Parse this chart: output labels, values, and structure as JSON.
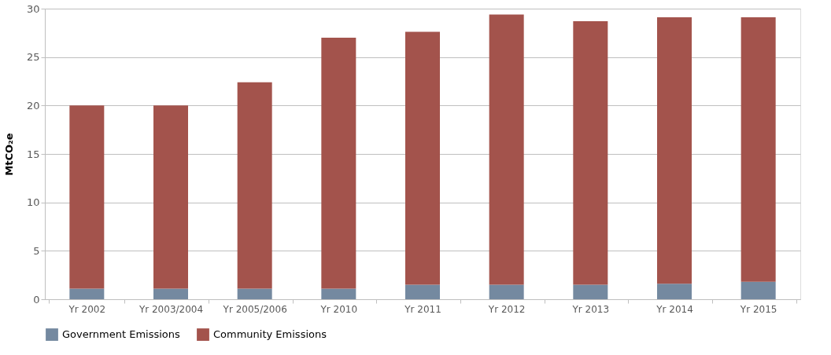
{
  "chart_data": {
    "type": "bar",
    "stacked": true,
    "ylabel": "MtCO₂e",
    "categories": [
      "Yr 2002",
      "Yr 2003/2004",
      "Yr 2005/2006",
      "Yr 2010",
      "Yr 2011",
      "Yr 2012",
      "Yr 2013",
      "Yr 2014",
      "Yr 2015"
    ],
    "series": [
      {
        "name": "Government Emissions",
        "color": "#7489a0",
        "values": [
          1.1,
          1.1,
          1.1,
          1.1,
          1.5,
          1.5,
          1.5,
          1.6,
          1.8
        ]
      },
      {
        "name": "Community Emissions",
        "color": "#a3534c",
        "values": [
          18.9,
          18.9,
          21.3,
          25.9,
          26.1,
          27.9,
          27.2,
          27.5,
          27.3
        ]
      }
    ],
    "ylim": [
      0,
      30
    ],
    "yticks": [
      0,
      5,
      10,
      15,
      20,
      25,
      30
    ],
    "grid": "y",
    "legend": "bottom"
  }
}
